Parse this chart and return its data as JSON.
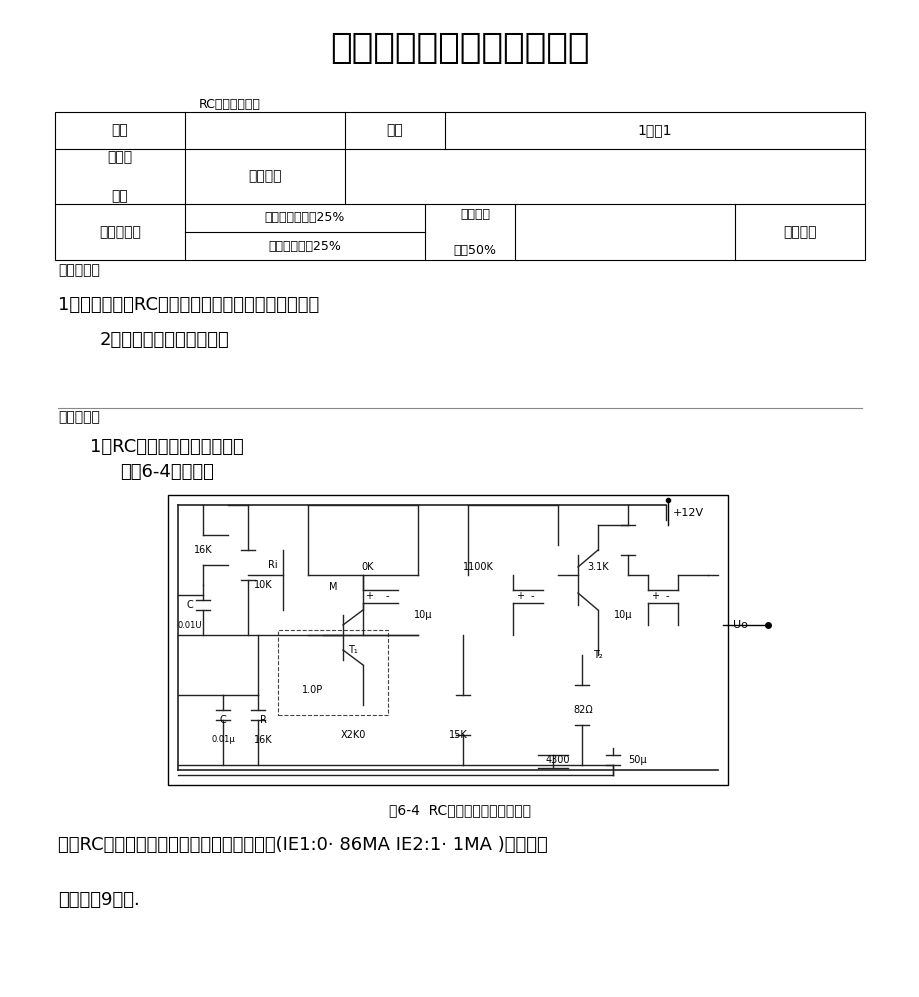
{
  "title": "模拟电路实验课程实验报告",
  "subtitle_label": "RC正弦波振荡器",
  "table_header_label1": "姓名",
  "table_header_label2": "班级",
  "table_header_label3": "1学号1",
  "row2_col1": "实验台\n\n编号",
  "row2_col2": "同组学生",
  "row3_col1": "实验课表现",
  "row3_col2a": "出勤、表现得分25%",
  "row3_col2b": "操作结果得分25%",
  "row3_col3": "实验报告\n\n得分50%",
  "row3_col4": "实验总分",
  "section_purpose": "实验目的：",
  "purpose1": "1、进一步学习RC止弦波振荡器的组成及其振荡条件",
  "purpose2": "2、学会测量、调试振荡器",
  "section_content": "实验内容：",
  "content1": "1、RC串并联选频网络振荡器",
  "content2": "按图6-4组接线路",
  "figure_caption": "图6-4  RC串并联选频网络振荡器",
  "conclusion1": "断开RC串并联网络，测量放大器静态工作点(IE1:0· 86MA IE2:1· 1MA )及电压放",
  "conclusion2": "大倍数（9倍）.",
  "bg_color": "#ffffff",
  "text_color": "#000000",
  "table_border_color": "#000000",
  "line_color": "#333333"
}
